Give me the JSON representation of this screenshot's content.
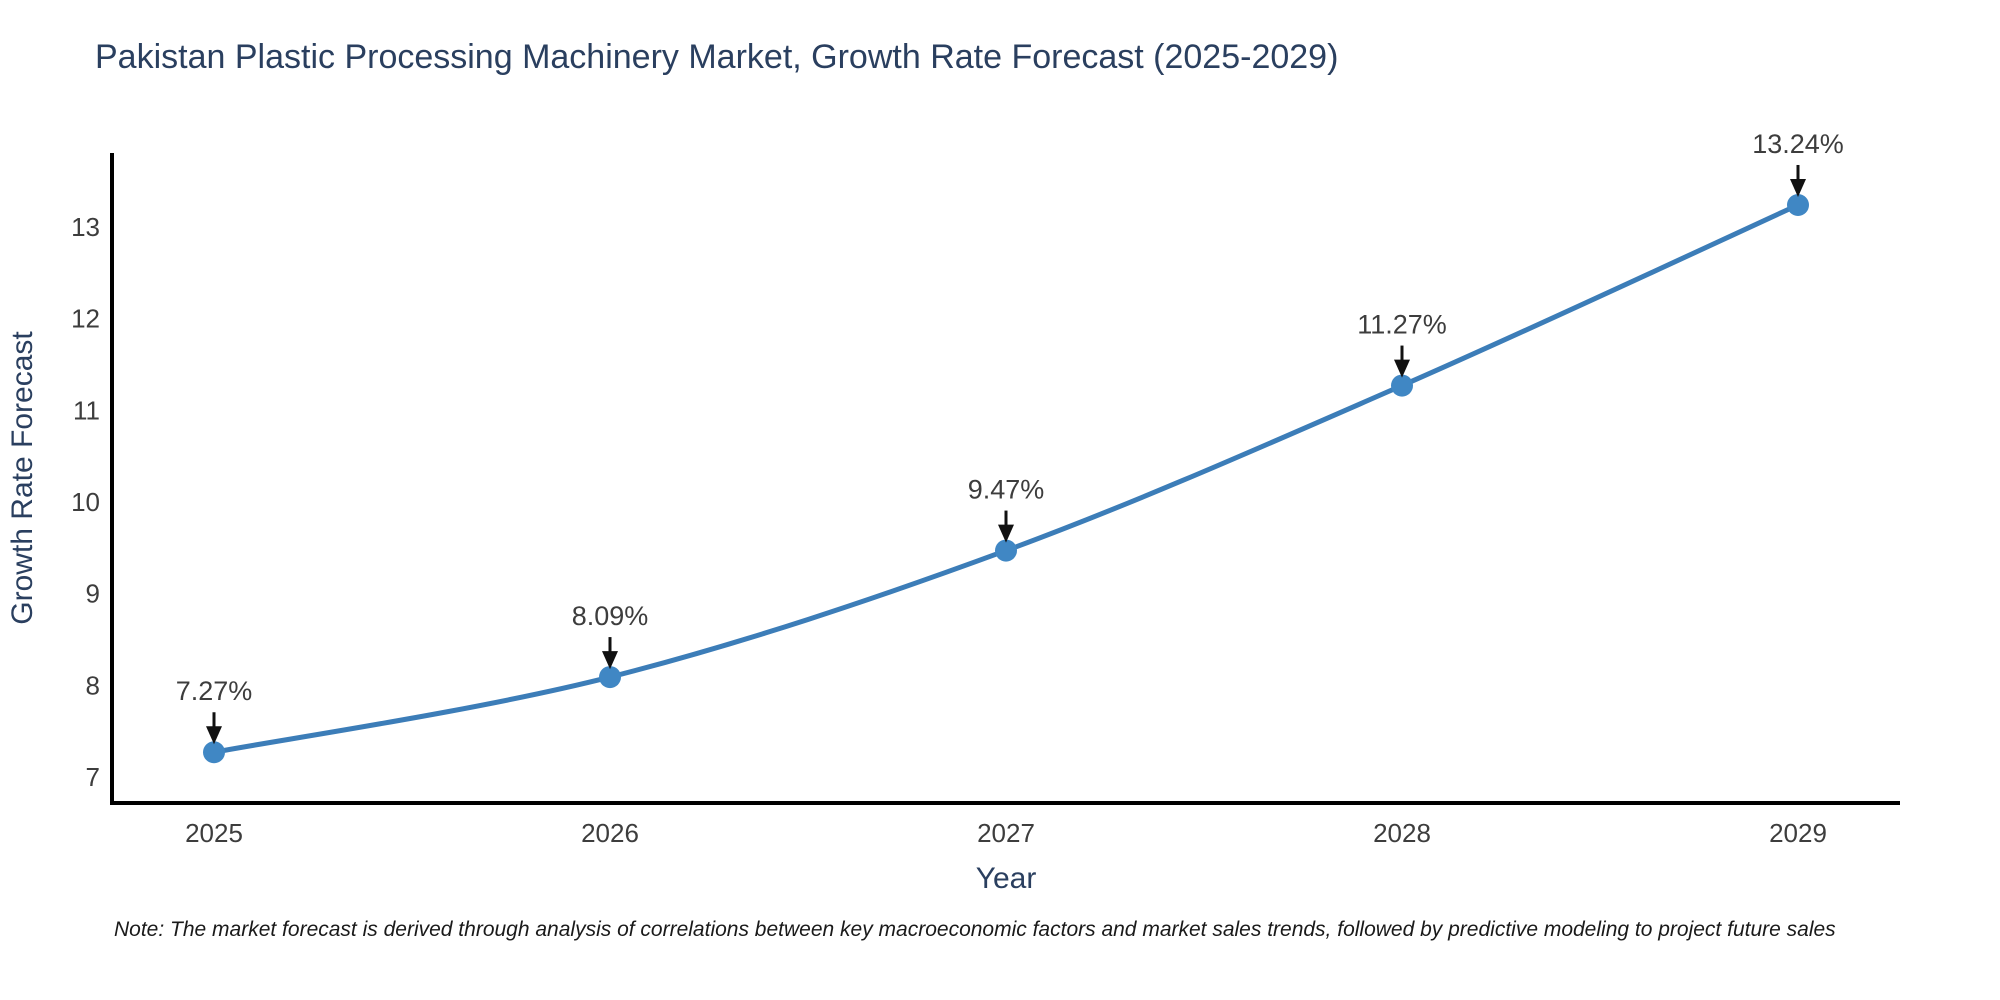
{
  "title": "Pakistan Plastic Processing Machinery Market, Growth Rate Forecast (2025-2029)",
  "note": "Note: The market forecast is derived through analysis of correlations between key macroeconomic factors and market sales trends, followed by predictive modeling to project future sales",
  "chart_data": {
    "type": "line",
    "title": "Pakistan Plastic Processing Machinery Market, Growth Rate Forecast (2025-2029)",
    "xlabel": "Year",
    "ylabel": "Growth Rate Forecast",
    "x": [
      "2025",
      "2026",
      "2027",
      "2028",
      "2029"
    ],
    "series": [
      {
        "name": "Growth Rate Forecast",
        "values": [
          7.27,
          8.09,
          9.47,
          11.27,
          13.24
        ]
      }
    ],
    "point_labels": [
      "7.27%",
      "8.09%",
      "9.47%",
      "11.27%",
      "13.24%"
    ],
    "yticks": [
      7,
      8,
      9,
      10,
      11,
      12,
      13
    ],
    "ylim": [
      6.72,
      13.81
    ],
    "line_shape": "spline",
    "grid": false,
    "legend_position": "none",
    "colors": {
      "line": "#3c7db8",
      "marker": "#4087c4",
      "arrow": "#111111",
      "axis": "#000000",
      "title_text": "#2a3f5f",
      "tick_text": "#3d3d3d"
    }
  }
}
